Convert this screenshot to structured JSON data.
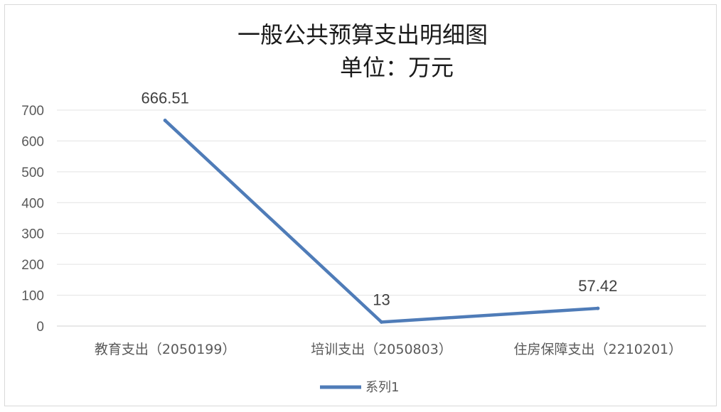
{
  "chart_data": {
    "type": "line",
    "title_line1": "一般公共预算支出明细图",
    "title_line2": "单位：万元",
    "categories": [
      "教育支出（2050199）",
      "培训支出（2050803）",
      "住房保障支出（2210201）"
    ],
    "series": [
      {
        "name": "系列1",
        "values": [
          666.51,
          13,
          57.42
        ],
        "labels": [
          "666.51",
          "13",
          "57.42"
        ],
        "color": "#4f7cb8"
      }
    ],
    "ylim": [
      0,
      700
    ],
    "yticks": [
      "0",
      "100",
      "200",
      "300",
      "400",
      "500",
      "600",
      "700"
    ],
    "grid": true,
    "legend_position": "bottom"
  }
}
